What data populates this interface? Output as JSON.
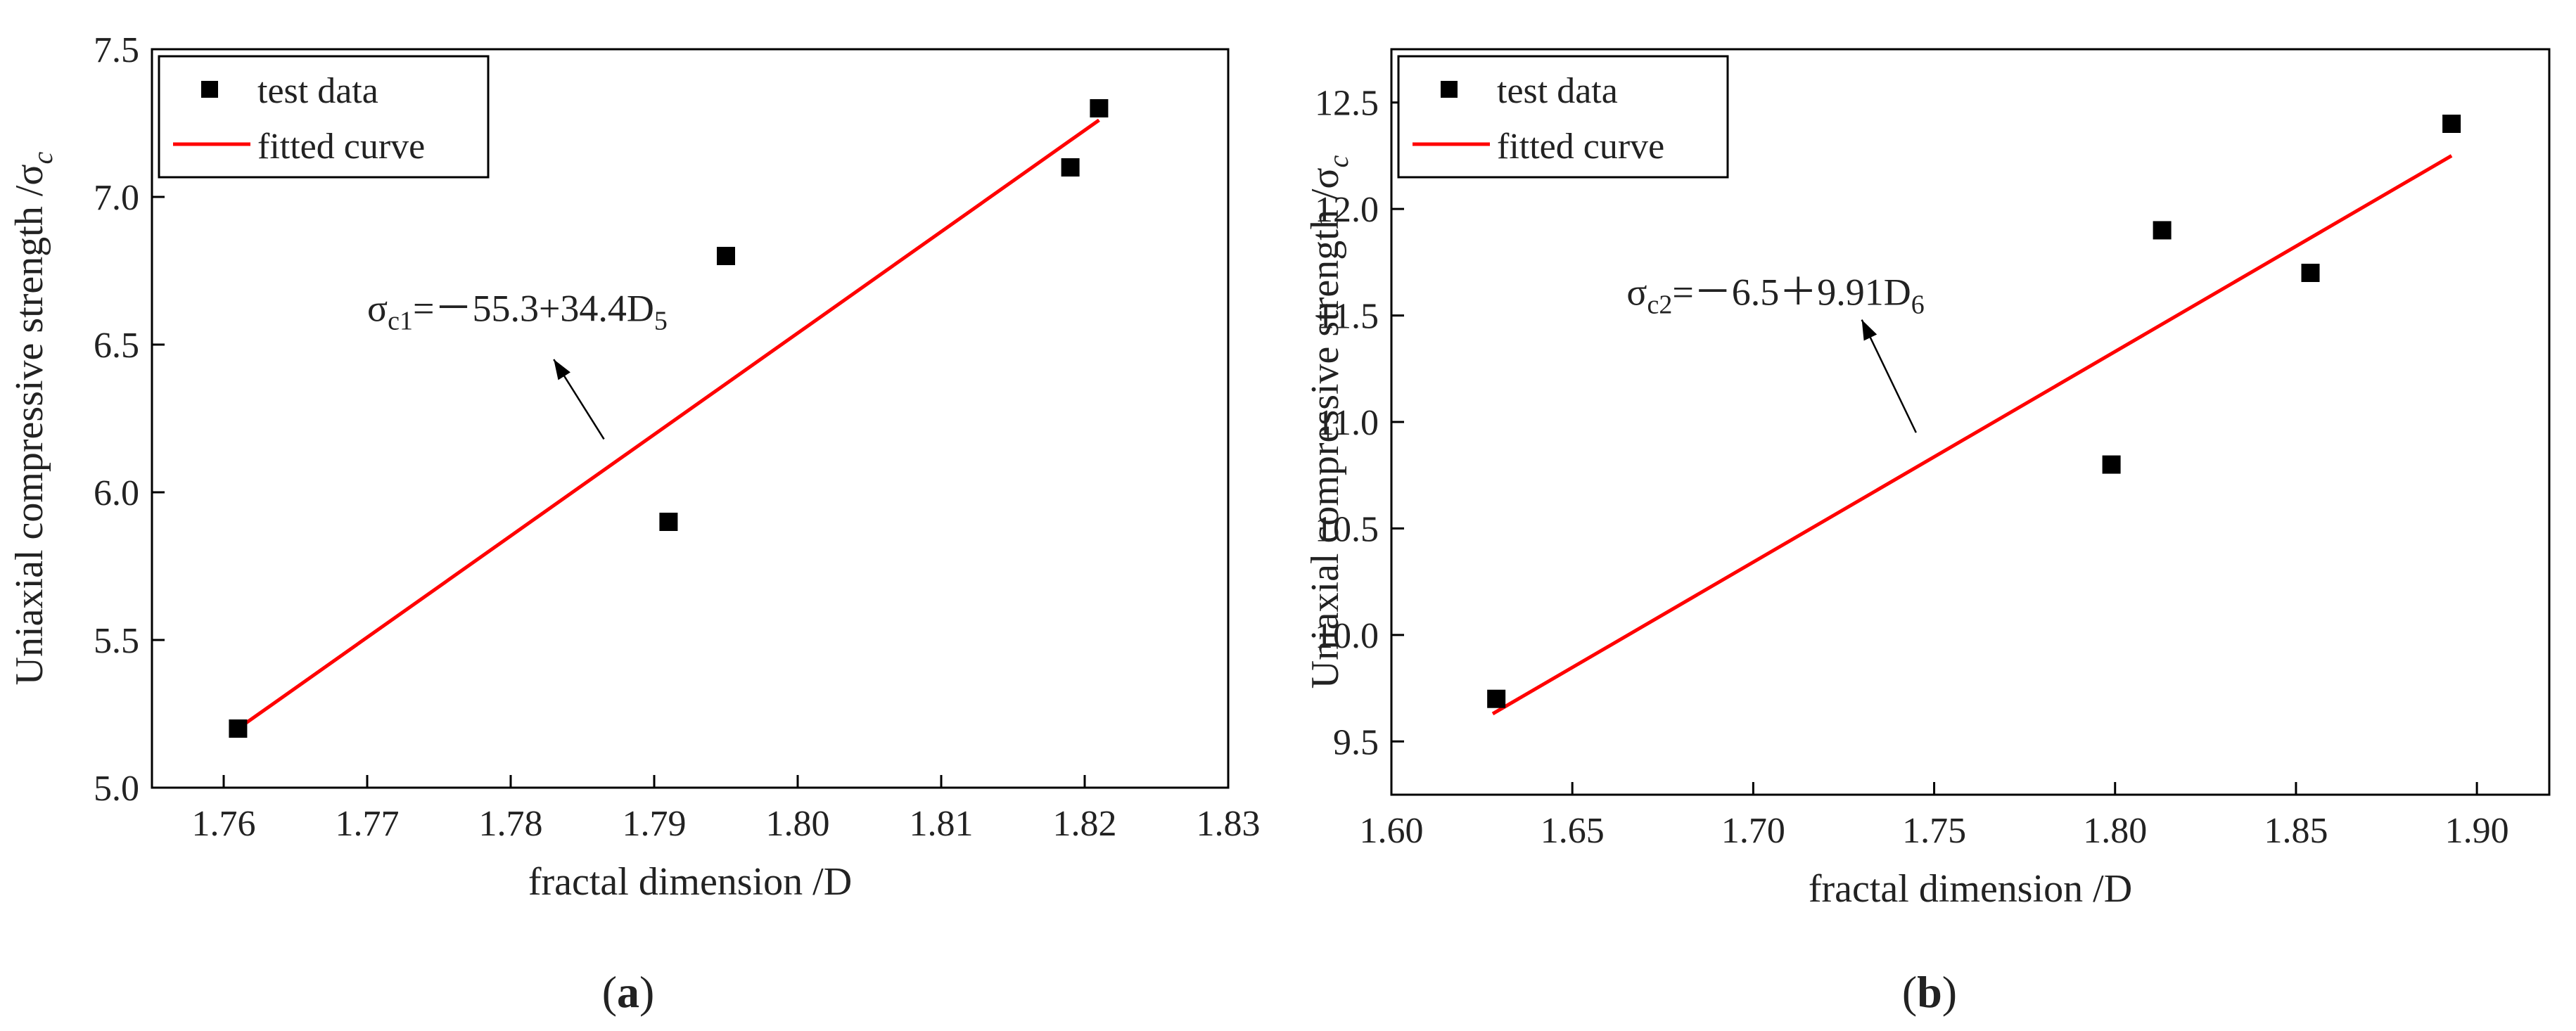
{
  "chart_data": [
    {
      "type": "scatter",
      "panel_label": "a",
      "xlabel": "fractal dimension /D",
      "ylabel": "Uniaxial compressive strength /σ",
      "ylabel_sub": "c",
      "xlim": [
        1.755,
        1.83
      ],
      "ylim": [
        5.0,
        7.5
      ],
      "xticks": [
        "1.76",
        "1.77",
        "1.78",
        "1.79",
        "1.80",
        "1.81",
        "1.82",
        "1.83"
      ],
      "yticks": [
        "5.0",
        "5.5",
        "6.0",
        "6.5",
        "7.0",
        "7.5"
      ],
      "series": [
        {
          "name": "test data",
          "kind": "points",
          "color": "#000000",
          "x": [
            1.761,
            1.791,
            1.795,
            1.819,
            1.821
          ],
          "y": [
            5.2,
            5.9,
            6.8,
            7.1,
            7.3
          ]
        },
        {
          "name": "fitted curve",
          "kind": "line",
          "color": "#ff0000",
          "x": [
            1.761,
            1.821
          ],
          "y": [
            5.2,
            7.26
          ]
        }
      ],
      "legend": {
        "placement": "top-left",
        "items": [
          "test data",
          "fitted curve"
        ]
      },
      "annotation": {
        "prefix": "σ",
        "sub1": "c1",
        "body": "=－55.3+34.4D",
        "sub2": "5",
        "arrow_from": [
          1.7865,
          6.18
        ],
        "arrow_to": [
          1.783,
          6.45
        ],
        "text_at": [
          1.77,
          6.58
        ]
      }
    },
    {
      "type": "scatter",
      "panel_label": "b",
      "xlabel": "fractal dimension /D",
      "ylabel": "Uniaxial compressive strength /σ",
      "ylabel_sub": "c",
      "xlim": [
        1.6,
        1.92
      ],
      "ylim": [
        9.25,
        12.75
      ],
      "xticks": [
        "1.60",
        "1.65",
        "1.70",
        "1.75",
        "1.80",
        "1.85",
        "1.90"
      ],
      "yticks": [
        "9.5",
        "10.0",
        "10.5",
        "11.0",
        "11.5",
        "12.0",
        "12.5"
      ],
      "series": [
        {
          "name": "test data",
          "kind": "points",
          "color": "#000000",
          "x": [
            1.629,
            1.799,
            1.813,
            1.854,
            1.893
          ],
          "y": [
            9.7,
            10.8,
            11.9,
            11.7,
            12.4
          ]
        },
        {
          "name": "fitted curve",
          "kind": "line",
          "color": "#ff0000",
          "x": [
            1.628,
            1.893
          ],
          "y": [
            9.63,
            12.25
          ]
        }
      ],
      "legend": {
        "placement": "top-left",
        "items": [
          "test data",
          "fitted curve"
        ]
      },
      "annotation": {
        "prefix": "σ",
        "sub1": "c2",
        "body": "=－6.5＋9.91D",
        "sub2": "6",
        "arrow_from": [
          1.745,
          10.95
        ],
        "arrow_to": [
          1.73,
          11.48
        ],
        "text_at": [
          1.665,
          11.55
        ]
      }
    }
  ]
}
